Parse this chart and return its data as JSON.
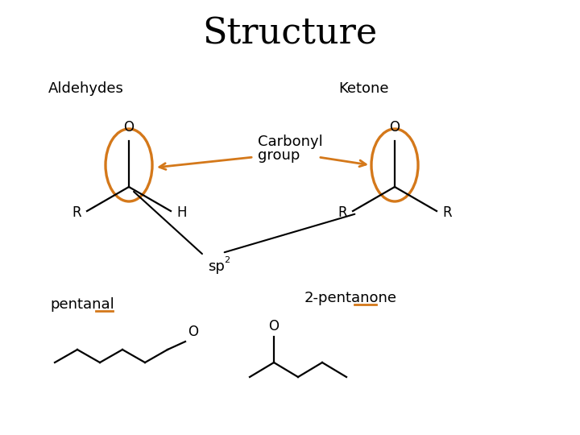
{
  "title": "Structure",
  "title_fontsize": 32,
  "bg_color": "#ffffff",
  "orange_color": "#D4781A",
  "black_color": "#000000",
  "labels": {
    "aldehydes": "Aldehydes",
    "ketone": "Ketone",
    "carbonyl_line1": "Carbonyl",
    "carbonyl_line2": "group",
    "pentanal": "pentanal",
    "pentanone": "2-pentanone"
  },
  "label_fontsize": 13,
  "molecule_fontsize": 12,
  "lw_mol": 1.6,
  "lw_ellipse": 2.4,
  "lw_arrow": 2.0
}
